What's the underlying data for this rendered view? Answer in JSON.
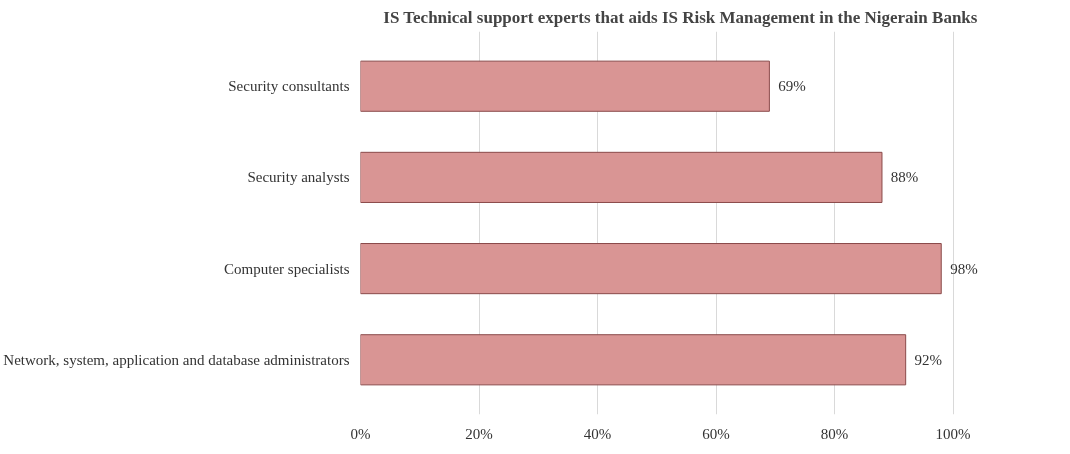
{
  "chart_data": {
    "type": "bar",
    "orientation": "horizontal",
    "title": "IS Technical support experts that aids IS Risk Management in the Nigerain Banks",
    "categories": [
      "Security consultants",
      "Security analysts",
      "Computer specialists",
      "Network, system, application and database administrators"
    ],
    "values": [
      69,
      88,
      98,
      92
    ],
    "color": "#d99594",
    "value_labels": [
      "69%",
      "88%",
      "98%",
      "92%"
    ],
    "xlim": [
      0,
      100
    ],
    "xticks": [
      {
        "value": 0,
        "label": "0%"
      },
      {
        "value": 20,
        "label": "20%"
      },
      {
        "value": 40,
        "label": "40%"
      },
      {
        "value": 60,
        "label": "60%"
      },
      {
        "value": 80,
        "label": "80%"
      },
      {
        "value": 100,
        "label": "100%"
      }
    ],
    "grid": "x"
  }
}
